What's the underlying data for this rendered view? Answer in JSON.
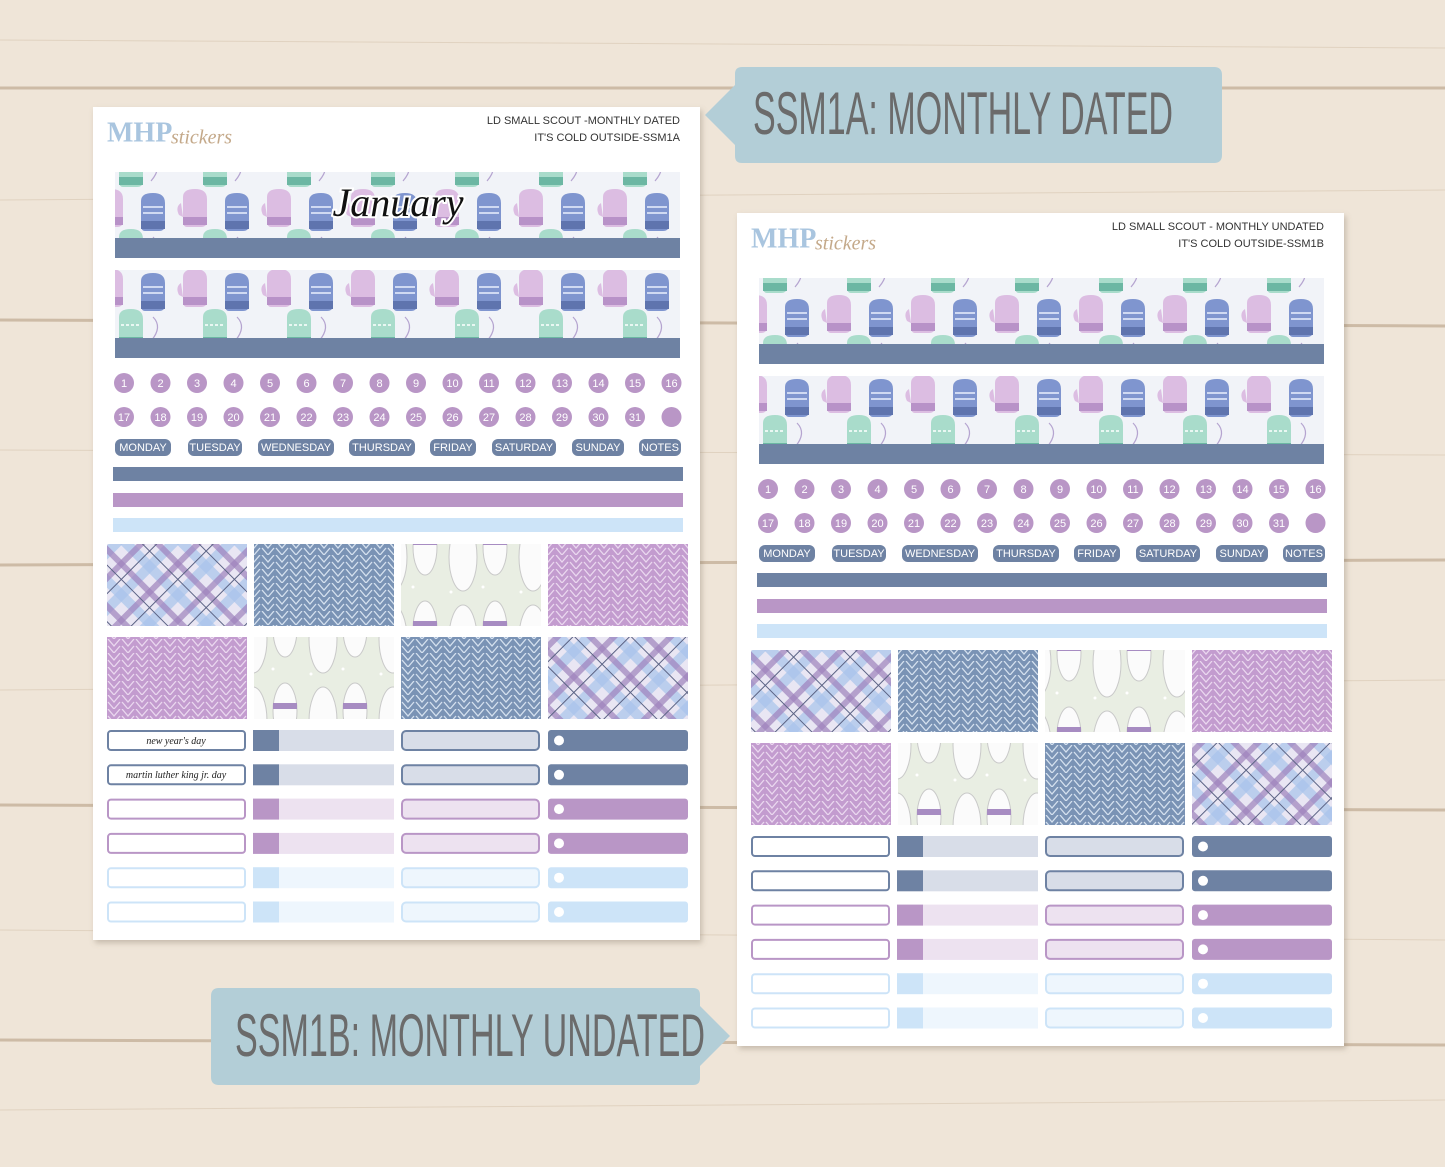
{
  "tags": [
    {
      "label": "SSM1A: MONTHLY DATED"
    },
    {
      "label": "SSM1B: MONTHLY UNDATED"
    }
  ],
  "sheets": [
    {
      "brand": "MHP",
      "brand_script": "stickers",
      "title": "LD SMALL SCOUT -MONTHLY DATED",
      "subtitle": "IT'S COLD OUTSIDE-SSM1A",
      "banner_text": "January",
      "dates": [
        1,
        2,
        3,
        4,
        5,
        6,
        7,
        8,
        9,
        10,
        11,
        12,
        13,
        14,
        15,
        16,
        17,
        18,
        19,
        20,
        21,
        22,
        23,
        24,
        25,
        26,
        27,
        28,
        29,
        30,
        31
      ],
      "days": [
        "MONDAY",
        "TUESDAY",
        "WEDNESDAY",
        "THURSDAY",
        "FRIDAY",
        "SATURDAY",
        "SUNDAY",
        "NOTES"
      ],
      "holidays": [
        "new year's day",
        "martin luther king jr. day"
      ]
    },
    {
      "brand": "MHP",
      "brand_script": "stickers",
      "title": "LD SMALL SCOUT - MONTHLY UNDATED",
      "subtitle": "IT'S COLD OUTSIDE-SSM1B",
      "dates": [
        1,
        2,
        3,
        4,
        5,
        6,
        7,
        8,
        9,
        10,
        11,
        12,
        13,
        14,
        15,
        16,
        17,
        18,
        19,
        20,
        21,
        22,
        23,
        24,
        25,
        26,
        27,
        28,
        29,
        30,
        31
      ],
      "days": [
        "MONDAY",
        "TUESDAY",
        "WEDNESDAY",
        "THURSDAY",
        "FRIDAY",
        "SATURDAY",
        "SUNDAY",
        "NOTES"
      ]
    }
  ]
}
